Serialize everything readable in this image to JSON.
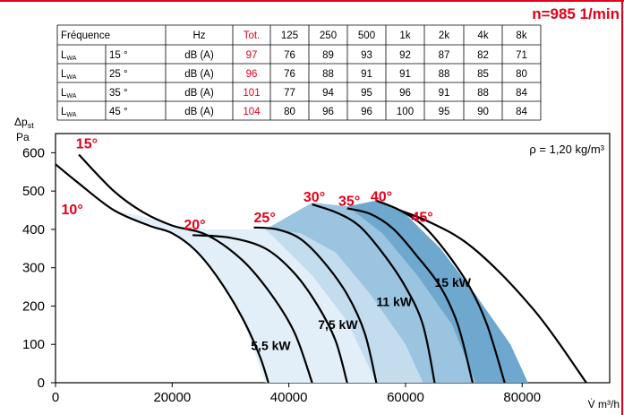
{
  "header": {
    "speed_label": "n=985 1/min"
  },
  "noise_table": {
    "columns": [
      "Fréquence",
      "",
      "Hz",
      "Tot.",
      "125",
      "250",
      "500",
      "1k",
      "2k",
      "4k",
      "8k"
    ],
    "rows": [
      {
        "label": "L",
        "sub": "WA",
        "angle": "15 °",
        "unit": "dB (A)",
        "tot": "97",
        "values": [
          "76",
          "89",
          "93",
          "92",
          "87",
          "82",
          "71"
        ]
      },
      {
        "label": "L",
        "sub": "WA",
        "angle": "25 °",
        "unit": "dB (A)",
        "tot": "96",
        "values": [
          "76",
          "88",
          "91",
          "91",
          "88",
          "85",
          "80"
        ]
      },
      {
        "label": "L",
        "sub": "WA",
        "angle": "35 °",
        "unit": "dB (A)",
        "tot": "101",
        "values": [
          "77",
          "94",
          "95",
          "96",
          "91",
          "88",
          "84"
        ]
      },
      {
        "label": "L",
        "sub": "WA",
        "angle": "45 °",
        "unit": "dB (A)",
        "tot": "104",
        "values": [
          "80",
          "96",
          "96",
          "100",
          "95",
          "90",
          "84"
        ]
      }
    ]
  },
  "colors": {
    "accent": "#e2001a",
    "zone1": "#e2eff8",
    "zone2": "#c3dcee",
    "zone3": "#9ac4e0",
    "zone4": "#6ea8cf",
    "curve": "#000000"
  },
  "chart_data": {
    "type": "line",
    "ylabel_main": "Δp",
    "ylabel_sub": "st",
    "ylabel_unit": "Pa",
    "xlabel": "V̇ m³/h",
    "xlim": [
      0,
      95000
    ],
    "ylim": [
      0,
      650
    ],
    "xticks": [
      0,
      20000,
      40000,
      60000,
      80000
    ],
    "xtick_labels": [
      "0",
      "20000",
      "40000",
      "60000",
      "80000"
    ],
    "yticks": [
      0,
      100,
      200,
      300,
      400,
      500,
      600
    ],
    "ytick_labels": [
      "0",
      "100",
      "200",
      "300",
      "400",
      "500",
      "600"
    ],
    "density_note": "ρ = 1,20 kg/m³",
    "series": [
      {
        "name": "10°",
        "points": [
          [
            0,
            570
          ],
          [
            4000,
            520
          ],
          [
            10000,
            450
          ],
          [
            16000,
            410
          ],
          [
            20000,
            390
          ],
          [
            24000,
            345
          ],
          [
            28000,
            270
          ],
          [
            32000,
            170
          ],
          [
            35000,
            70
          ],
          [
            36500,
            0
          ]
        ]
      },
      {
        "name": "15°",
        "points": [
          [
            4000,
            595
          ],
          [
            10000,
            500
          ],
          [
            15000,
            445
          ],
          [
            20000,
            410
          ],
          [
            26000,
            385
          ],
          [
            32000,
            320
          ],
          [
            37000,
            230
          ],
          [
            41000,
            130
          ],
          [
            44000,
            0
          ]
        ]
      },
      {
        "name": "20°",
        "points": [
          [
            23500,
            385
          ],
          [
            30000,
            378
          ],
          [
            36000,
            350
          ],
          [
            41000,
            285
          ],
          [
            45000,
            200
          ],
          [
            48000,
            110
          ],
          [
            50000,
            0
          ]
        ]
      },
      {
        "name": "25°",
        "points": [
          [
            34000,
            405
          ],
          [
            38000,
            400
          ],
          [
            42000,
            375
          ],
          [
            46000,
            315
          ],
          [
            50000,
            230
          ],
          [
            53000,
            130
          ],
          [
            55000,
            0
          ]
        ]
      },
      {
        "name": "30°",
        "points": [
          [
            44000,
            465
          ],
          [
            48000,
            445
          ],
          [
            52000,
            410
          ],
          [
            56000,
            340
          ],
          [
            60000,
            250
          ],
          [
            63000,
            150
          ],
          [
            65000,
            0
          ]
        ]
      },
      {
        "name": "35°",
        "points": [
          [
            50000,
            455
          ],
          [
            54000,
            440
          ],
          [
            58000,
            400
          ],
          [
            62000,
            330
          ],
          [
            66000,
            250
          ],
          [
            69000,
            150
          ],
          [
            71500,
            0
          ]
        ]
      },
      {
        "name": "40°",
        "points": [
          [
            55000,
            475
          ],
          [
            59000,
            450
          ],
          [
            63000,
            410
          ],
          [
            67000,
            340
          ],
          [
            71000,
            250
          ],
          [
            74000,
            150
          ],
          [
            77000,
            0
          ]
        ]
      },
      {
        "name": "45°",
        "points": [
          [
            59000,
            450
          ],
          [
            64000,
            420
          ],
          [
            70000,
            370
          ],
          [
            76000,
            290
          ],
          [
            82000,
            190
          ],
          [
            86000,
            110
          ],
          [
            91000,
            0
          ]
        ]
      }
    ],
    "curve_labels": [
      {
        "text": "10°",
        "x": 1000,
        "y": 440
      },
      {
        "text": "15°",
        "x": 3500,
        "y": 612
      },
      {
        "text": "20°",
        "x": 22000,
        "y": 400
      },
      {
        "text": "25°",
        "x": 34000,
        "y": 418
      },
      {
        "text": "30°",
        "x": 42500,
        "y": 472
      },
      {
        "text": "35°",
        "x": 48500,
        "y": 462
      },
      {
        "text": "40°",
        "x": 54000,
        "y": 474
      },
      {
        "text": "45°",
        "x": 61000,
        "y": 420
      }
    ],
    "power_labels": [
      {
        "text": "5,5 kW",
        "x": 33500,
        "y": 85
      },
      {
        "text": "7,5 kW",
        "x": 45000,
        "y": 140
      },
      {
        "text": "11 kW",
        "x": 55000,
        "y": 200
      },
      {
        "text": "15 kW",
        "x": 65000,
        "y": 250
      }
    ],
    "zones": [
      {
        "name": "5,5 kW",
        "points": [
          [
            0,
            570
          ],
          [
            4000,
            520
          ],
          [
            10000,
            450
          ],
          [
            16000,
            430
          ],
          [
            20000,
            410
          ],
          [
            26000,
            400
          ],
          [
            36000,
            400
          ],
          [
            44000,
            280
          ],
          [
            50000,
            160
          ],
          [
            55000,
            0
          ],
          [
            36000,
            0
          ],
          [
            32000,
            170
          ],
          [
            28000,
            270
          ],
          [
            24000,
            345
          ],
          [
            20000,
            390
          ],
          [
            16000,
            410
          ],
          [
            10000,
            450
          ],
          [
            4000,
            520
          ]
        ]
      },
      {
        "name": "7,5 kW",
        "points": [
          [
            26000,
            400
          ],
          [
            36000,
            400
          ],
          [
            42000,
            390
          ],
          [
            48000,
            340
          ],
          [
            54000,
            230
          ],
          [
            60000,
            100
          ],
          [
            63000,
            0
          ],
          [
            55000,
            0
          ],
          [
            50000,
            160
          ],
          [
            44000,
            280
          ],
          [
            36000,
            400
          ]
        ]
      },
      {
        "name": "11 kW",
        "points": [
          [
            36000,
            400
          ],
          [
            44000,
            470
          ],
          [
            50000,
            460
          ],
          [
            56000,
            390
          ],
          [
            62000,
            280
          ],
          [
            68000,
            150
          ],
          [
            72000,
            0
          ],
          [
            63000,
            0
          ],
          [
            60000,
            100
          ],
          [
            54000,
            230
          ],
          [
            48000,
            340
          ],
          [
            42000,
            390
          ]
        ]
      },
      {
        "name": "15 kW",
        "points": [
          [
            44000,
            470
          ],
          [
            50000,
            460
          ],
          [
            55000,
            475
          ],
          [
            60000,
            440
          ],
          [
            66000,
            350
          ],
          [
            72000,
            230
          ],
          [
            78000,
            100
          ],
          [
            81000,
            0
          ],
          [
            72000,
            0
          ],
          [
            68000,
            150
          ],
          [
            62000,
            280
          ],
          [
            56000,
            390
          ],
          [
            50000,
            460
          ]
        ]
      }
    ]
  }
}
